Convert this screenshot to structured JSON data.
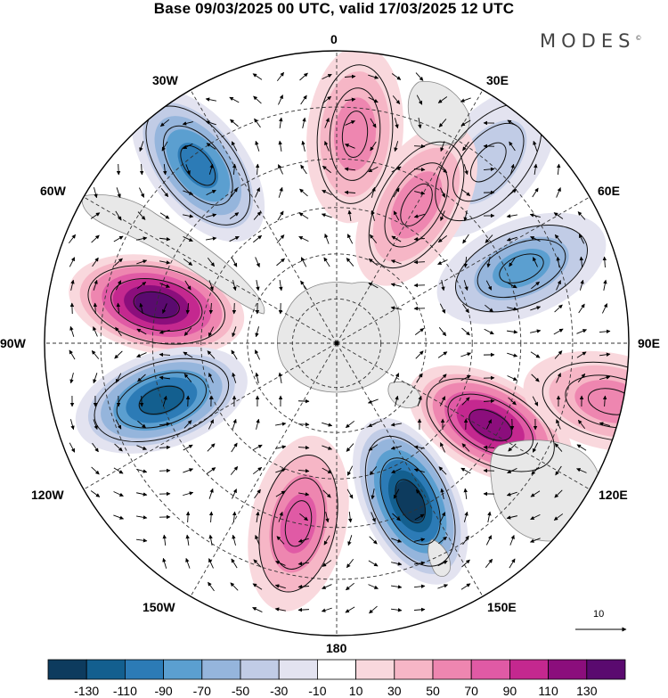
{
  "header": {
    "title": "Base 09/03/2025 00 UTC, valid 17/03/2025 12 UTC",
    "logo": "MODES",
    "logo_mark": "©"
  },
  "map": {
    "projection": "south-polar-stereographic",
    "longitude_labels": [
      "0",
      "30E",
      "60E",
      "90E",
      "120E",
      "150E",
      "180",
      "150W",
      "120W",
      "90W",
      "60W",
      "30W"
    ],
    "latitude_circles_deg": [
      -80,
      -70,
      -60,
      -50,
      -40,
      -30
    ],
    "anomaly_centers": [
      {
        "sign": "positive",
        "peak": 50,
        "lon_deg": 5,
        "lat_deg": -45
      },
      {
        "sign": "negative",
        "peak": -30,
        "lon_deg": 40,
        "lat_deg": -40
      },
      {
        "sign": "negative",
        "peak": -90,
        "lon_deg": -38,
        "lat_deg": -42
      },
      {
        "sign": "positive",
        "peak": 50,
        "lon_deg": 30,
        "lat_deg": -55
      },
      {
        "sign": "negative",
        "peak": -70,
        "lon_deg": 68,
        "lat_deg": -47
      },
      {
        "sign": "positive",
        "peak": 130,
        "lon_deg": -78,
        "lat_deg": -50
      },
      {
        "sign": "negative",
        "peak": -110,
        "lon_deg": -108,
        "lat_deg": -50
      },
      {
        "sign": "positive",
        "peak": 110,
        "lon_deg": 118,
        "lat_deg": -52
      },
      {
        "sign": "positive",
        "peak": 50,
        "lon_deg": 102,
        "lat_deg": -32
      },
      {
        "sign": "negative",
        "peak": -130,
        "lon_deg": 155,
        "lat_deg": -52
      },
      {
        "sign": "positive",
        "peak": 70,
        "lon_deg": -168,
        "lat_deg": -50
      }
    ],
    "reference_vector_label": "10"
  },
  "colorbar": {
    "ticks": [
      "-130",
      "-110",
      "-90",
      "-70",
      "-50",
      "-30",
      "-10",
      "10",
      "30",
      "50",
      "70",
      "90",
      "110",
      "130"
    ],
    "colors": [
      "#0d3b5e",
      "#135f8f",
      "#2c7bb6",
      "#5b9fd0",
      "#95b5dc",
      "#c1cce6",
      "#e3e3f0",
      "#ffffff",
      "#f9d8dd",
      "#f6b6c6",
      "#ee86b0",
      "#e05aa5",
      "#c4288f",
      "#8b0e7c",
      "#5a0a6f"
    ]
  }
}
